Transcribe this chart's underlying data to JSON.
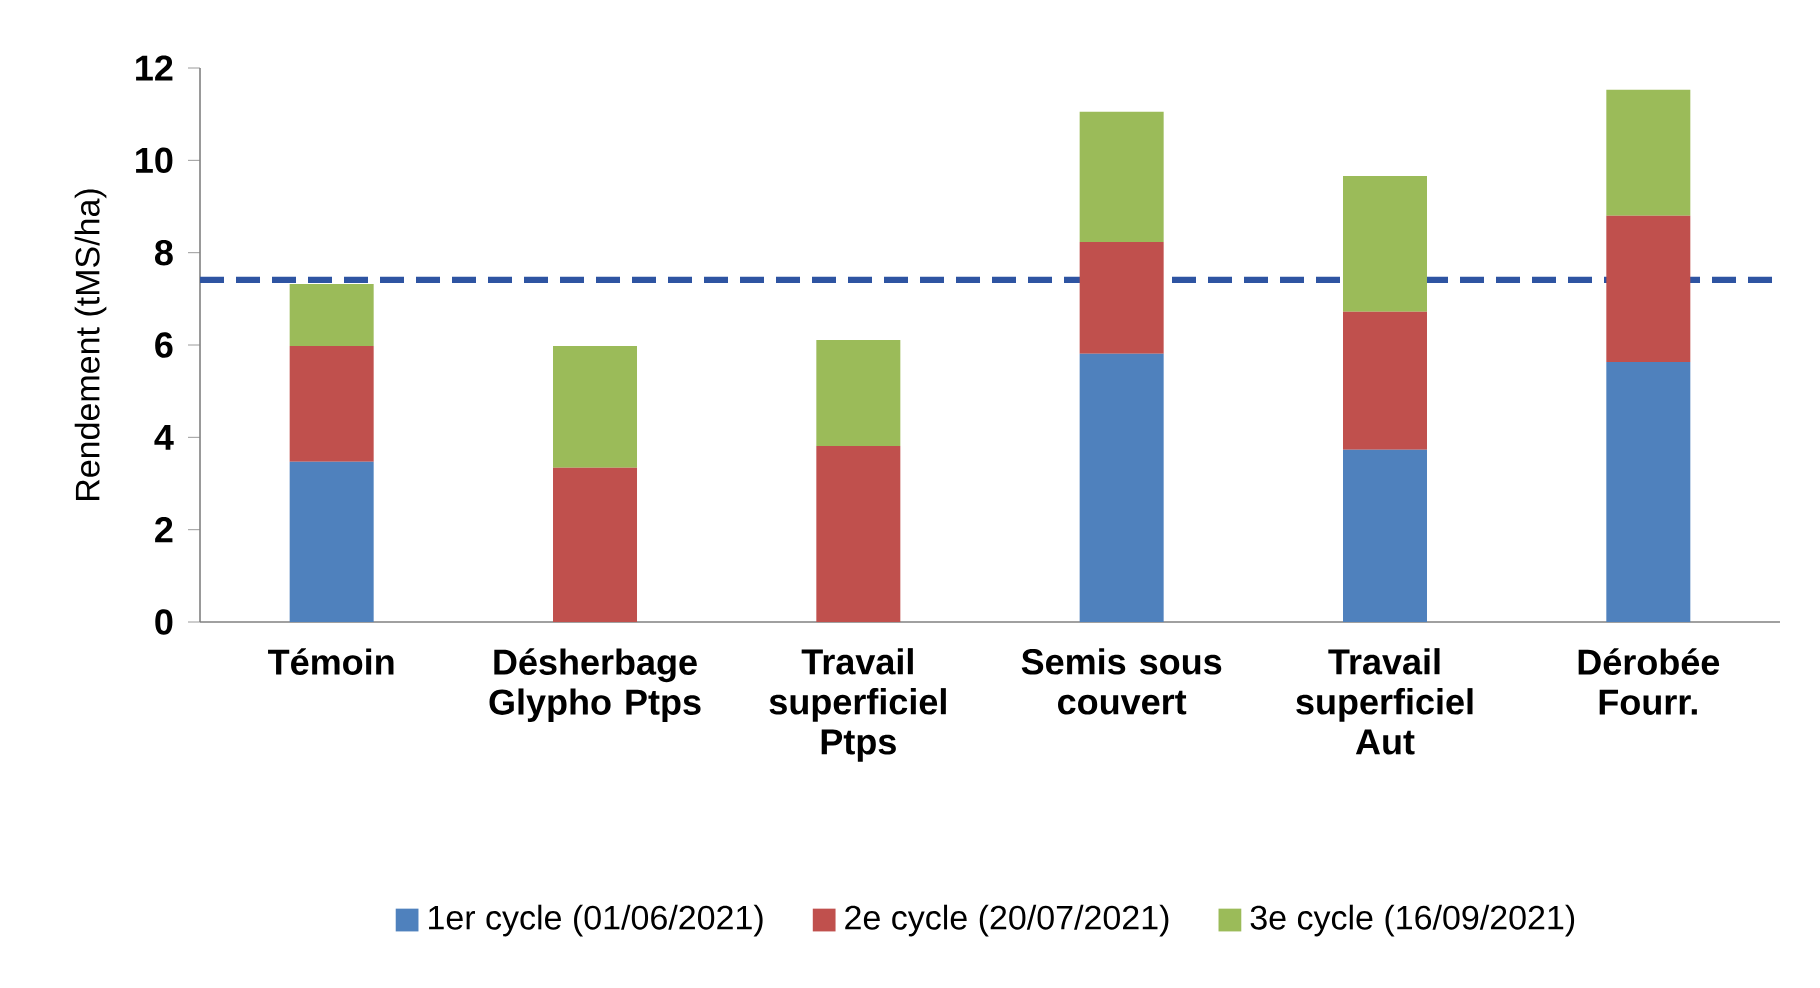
{
  "chart_data": {
    "type": "bar",
    "stacked": true,
    "ylabel": "Rendement (tMS/ha)",
    "categories": [
      "Témoin",
      "Désherbage Glypho Ptps",
      "Travail superficiel Ptps",
      "Semis sous couvert",
      "Travail superficiel Aut",
      "Dérobée Fourr."
    ],
    "series": [
      {
        "name": "1er cycle (01/06/2021)",
        "color": "#4f81bd",
        "values": [
          3.47,
          0,
          0,
          5.81,
          3.73,
          5.63
        ]
      },
      {
        "name": "2e cycle (20/07/2021)",
        "color": "#c0504d",
        "values": [
          2.51,
          3.34,
          3.81,
          2.42,
          2.99,
          3.17
        ]
      },
      {
        "name": "3e cycle (16/09/2021)",
        "color": "#9bbb59",
        "values": [
          1.34,
          2.64,
          2.3,
          2.82,
          2.94,
          2.73
        ]
      }
    ],
    "ylim": [
      0,
      12
    ],
    "yticks": [
      0,
      2,
      4,
      6,
      8,
      10,
      12
    ],
    "ref_lines": [
      {
        "axis": "y",
        "value": 7.41,
        "color": "#2e54a2",
        "line_style": "dashed"
      }
    ],
    "legend": "bottom",
    "grid": false
  }
}
